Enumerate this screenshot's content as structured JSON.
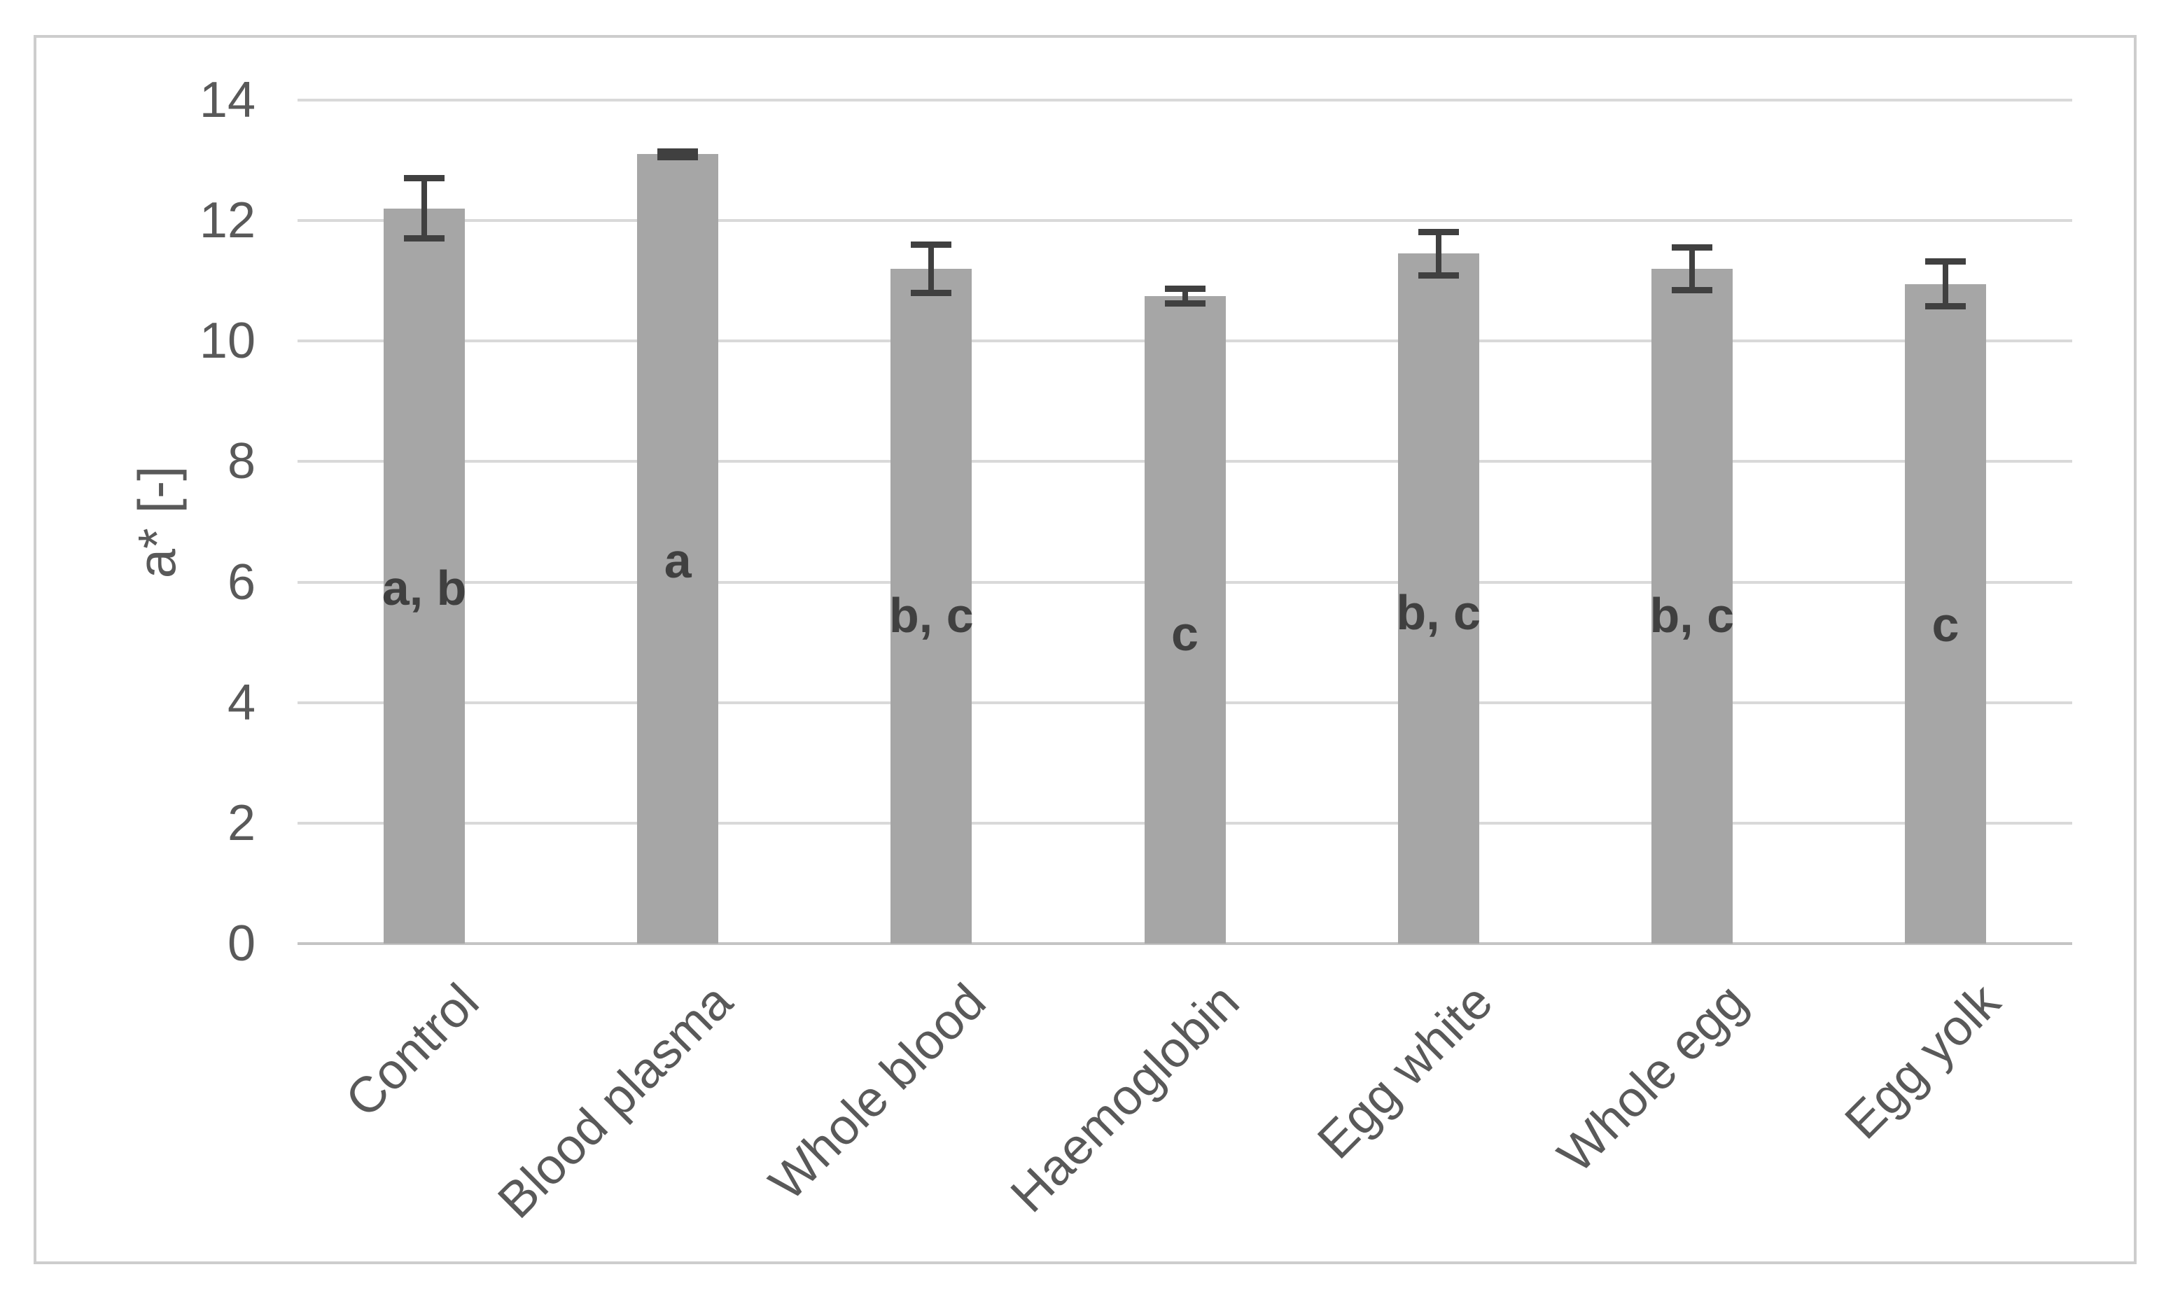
{
  "chart_data": {
    "type": "bar",
    "title": "",
    "xlabel": "",
    "ylabel": "a* [-]",
    "ylim": [
      0,
      14
    ],
    "ytick_step": 2,
    "grid": true,
    "legend": "none",
    "categories": [
      "Control",
      "Blood plasma",
      "Whole blood",
      "Haemoglobin",
      "Egg white",
      "Whole egg",
      "Egg yolk"
    ],
    "values": [
      12.2,
      13.1,
      11.2,
      10.75,
      11.45,
      11.2,
      10.95
    ],
    "error_bars": [
      0.5,
      0.05,
      0.4,
      0.12,
      0.36,
      0.36,
      0.37
    ],
    "significance_letters": [
      {
        "text": "a, b",
        "y": 5.9
      },
      {
        "text": "a",
        "y": 6.35
      },
      {
        "text": "b, c",
        "y": 5.45
      },
      {
        "text": "c",
        "y": 5.15
      },
      {
        "text": "b, c",
        "y": 5.5
      },
      {
        "text": "b, c",
        "y": 5.45
      },
      {
        "text": "c",
        "y": 5.3
      }
    ],
    "colors": {
      "bar_fill": "#a6a6a6",
      "error_bar": "#404040",
      "gridline": "#d9d9d9",
      "baseline": "#c4c4c4",
      "axis_text": "#595959",
      "letter_text": "#404040",
      "frame_border": "#cdcdcd",
      "background": "#ffffff"
    }
  }
}
